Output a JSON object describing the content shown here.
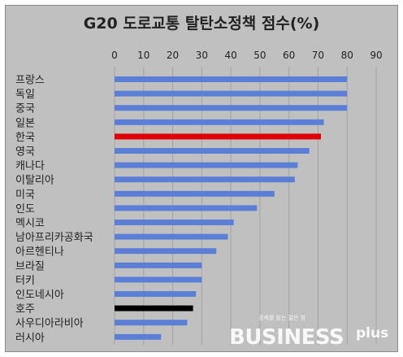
{
  "chart_data": {
    "type": "bar",
    "orientation": "horizontal",
    "title": "G20 도로교통 탈탄소정책 점수(%)",
    "xlim": [
      0,
      90
    ],
    "x_ticks": [
      "0",
      "10",
      "20",
      "30",
      "40",
      "50",
      "60",
      "70",
      "80",
      "90"
    ],
    "x_axis_position": "top",
    "grid": true,
    "categories": [
      "프랑스",
      "독일",
      "중국",
      "일본",
      "한국",
      "영국",
      "캐나다",
      "이탈리아",
      "미국",
      "인도",
      "멕시코",
      "남아프리카공화국",
      "아르헨티나",
      "브라질",
      "터키",
      "인도네시아",
      "호주",
      "사우디아라비아",
      "러시아"
    ],
    "values": [
      80,
      80,
      80,
      72,
      71,
      67,
      63,
      62,
      55,
      49,
      41,
      39,
      35,
      30,
      30,
      28,
      27,
      25,
      16
    ],
    "colors": {
      "default": "#5b7fd6",
      "highlight": "#e00000",
      "dark": "#000000",
      "background": "#c0c0c0",
      "grid": "#a3a3a3"
    },
    "bar_colors": [
      "default",
      "default",
      "default",
      "default",
      "highlight",
      "default",
      "default",
      "default",
      "default",
      "default",
      "default",
      "default",
      "default",
      "default",
      "default",
      "default",
      "dark",
      "default",
      "default"
    ]
  },
  "watermark": {
    "tagline": "경제를 읽는 젊은 창",
    "brand": "BUSINESS",
    "suffix": "plus"
  }
}
